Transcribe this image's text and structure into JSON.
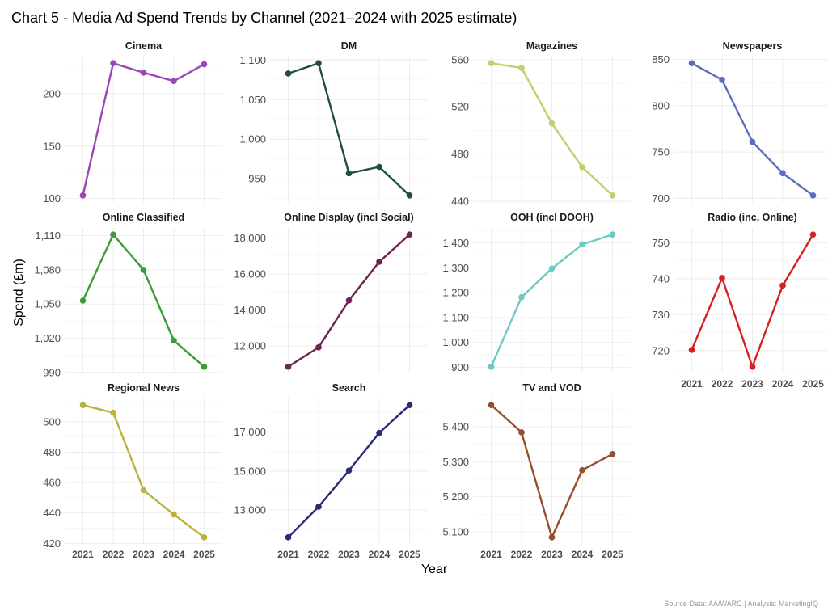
{
  "chart_data": {
    "type": "line",
    "title": "Chart 5 - Media Ad Spend Trends by Channel (2021–2024 with 2025 estimate)",
    "xlabel": "Year",
    "ylabel": "Spend (£m)",
    "caption": "Source Data: AA/WARC | Analysis: MarketingIQ",
    "categories": [
      "2021",
      "2022",
      "2023",
      "2024",
      "2025"
    ],
    "grid": true,
    "facets": [
      {
        "name": "Cinema",
        "color": "#9a45b8",
        "values": [
          103,
          229,
          220,
          212,
          228
        ],
        "ticks": [
          100,
          150,
          200
        ],
        "tick_labels": [
          "100",
          "150",
          "200"
        ]
      },
      {
        "name": "DM",
        "color": "#1f4e45",
        "values": [
          1083,
          1096,
          957,
          965,
          929
        ],
        "ticks": [
          950,
          1000,
          1050,
          1100
        ],
        "tick_labels": [
          "950",
          "1,000",
          "1,050",
          "1,100"
        ]
      },
      {
        "name": "Magazines",
        "color": "#c5cd6e",
        "values": [
          557,
          553,
          506,
          469,
          445
        ],
        "ticks": [
          440,
          480,
          520,
          560
        ],
        "tick_labels": [
          "440",
          "480",
          "520",
          "560"
        ]
      },
      {
        "name": "Newspapers",
        "color": "#5a6dc0",
        "values": [
          846,
          828,
          761,
          727,
          703
        ],
        "ticks": [
          700,
          750,
          800,
          850
        ],
        "tick_labels": [
          "700",
          "750",
          "800",
          "850"
        ]
      },
      {
        "name": "Online Classified",
        "color": "#3a9c3a",
        "values": [
          1053,
          1111,
          1080,
          1018,
          995
        ],
        "ticks": [
          990,
          1020,
          1050,
          1080,
          1110
        ],
        "tick_labels": [
          "990",
          "1,020",
          "1,050",
          "1,080",
          "1,110"
        ]
      },
      {
        "name": "Online Display (incl Social)",
        "color": "#6b2550",
        "values": [
          10840,
          11920,
          14530,
          16680,
          18200
        ],
        "ticks": [
          12000,
          14000,
          16000,
          18000
        ],
        "tick_labels": [
          "12,000",
          "14,000",
          "16,000",
          "18,000"
        ]
      },
      {
        "name": "OOH (incl DOOH)",
        "color": "#6ccac4",
        "values": [
          902,
          1182,
          1297,
          1394,
          1434
        ],
        "ticks": [
          900,
          1000,
          1100,
          1200,
          1300,
          1400
        ],
        "tick_labels": [
          "900",
          "1,000",
          "1,100",
          "1,200",
          "1,300",
          "1,400"
        ]
      },
      {
        "name": "Radio (inc. Online)",
        "color": "#d42222",
        "values": [
          720.2,
          740.2,
          715.5,
          738.1,
          752.3
        ],
        "ticks": [
          720,
          730,
          740,
          750
        ],
        "tick_labels": [
          "720",
          "730",
          "740",
          "750"
        ]
      },
      {
        "name": "Regional News",
        "color": "#b8b33a",
        "values": [
          511,
          506,
          455,
          439,
          424
        ],
        "ticks": [
          420,
          440,
          460,
          480,
          500
        ],
        "tick_labels": [
          "420",
          "440",
          "460",
          "480",
          "500"
        ]
      },
      {
        "name": "Search",
        "color": "#2a2a78",
        "values": [
          11600,
          13170,
          15030,
          16960,
          18390
        ],
        "ticks": [
          13000,
          15000,
          17000
        ],
        "tick_labels": [
          "13,000",
          "15,000",
          "17,000"
        ]
      },
      {
        "name": "TV and VOD",
        "color": "#93502e",
        "values": [
          5462,
          5384,
          5084,
          5276,
          5322
        ],
        "ticks": [
          5100,
          5200,
          5300,
          5400
        ],
        "tick_labels": [
          "5,100",
          "5,200",
          "5,300",
          "5,400"
        ]
      }
    ]
  }
}
